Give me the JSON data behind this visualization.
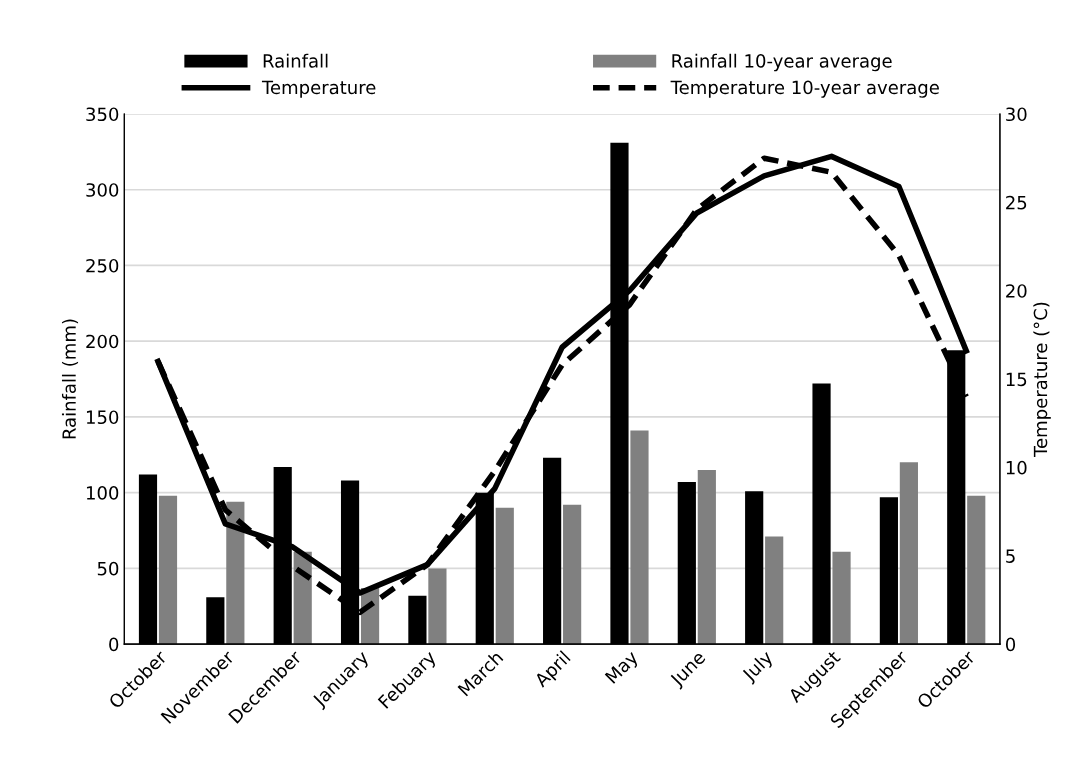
{
  "chart_data": {
    "type": "bar",
    "categories": [
      "October",
      "November",
      "December",
      "January",
      "Febuary",
      "March",
      "April",
      "May",
      "June",
      "July",
      "August",
      "September",
      "October"
    ],
    "ylabel": "Rainfall (mm)",
    "y2label": "Temperature (°C)",
    "ylim": [
      0,
      350
    ],
    "yticks": [
      0,
      50,
      100,
      150,
      200,
      250,
      300,
      350
    ],
    "y2lim": [
      0,
      30
    ],
    "y2ticks": [
      0,
      5,
      10,
      15,
      20,
      25,
      30
    ],
    "grid": "y",
    "legend": "top",
    "series": [
      {
        "name": "Rainfall",
        "color": "#000000",
        "values": [
          112,
          31,
          117,
          108,
          32,
          100,
          123,
          331,
          107,
          101,
          172,
          97,
          194
        ]
      },
      {
        "name": "Rainfall 10-year average",
        "color": "#808080",
        "values": [
          98,
          94,
          61,
          37,
          50,
          90,
          92,
          141,
          115,
          71,
          61,
          120,
          98
        ]
      },
      {
        "name": "Temperature",
        "type": "line",
        "axis": "y2",
        "color": "#000000",
        "line_style": "solid",
        "values": [
          16.0,
          6.8,
          5.5,
          2.9,
          4.5,
          8.8,
          16.8,
          20.0,
          24.4,
          26.5,
          27.6,
          25.9,
          16.6
        ]
      },
      {
        "name": "Temperature 10-year average",
        "type": "line",
        "axis": "y2",
        "color": "#000000",
        "line_style": "dashed",
        "values": [
          16.0,
          7.6,
          4.4,
          1.8,
          4.5,
          9.8,
          15.8,
          19.2,
          24.6,
          27.5,
          26.7,
          22.0,
          14.0
        ]
      }
    ]
  }
}
